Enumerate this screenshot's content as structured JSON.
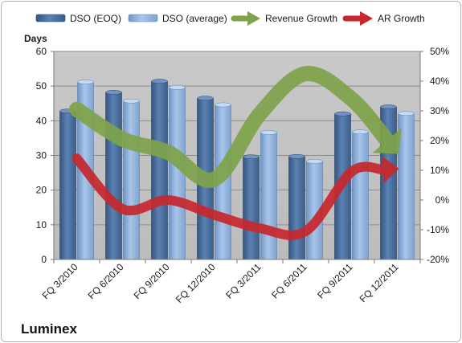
{
  "brand": "Luminex",
  "chart_data": {
    "type": "bar",
    "categories": [
      "FQ 3/2010",
      "FQ 6/2010",
      "FQ 9/2010",
      "FQ 12/2010",
      "FQ 3/2011",
      "FQ 6/2011",
      "FQ 9/2011",
      "FQ 12/2011"
    ],
    "series": [
      {
        "name": "DSO (EOQ)",
        "type": "bar",
        "axis": "left",
        "color": "#4a6f9c",
        "values": [
          42.8,
          48.2,
          51.4,
          46.5,
          29.6,
          29.7,
          42.0,
          44.0
        ]
      },
      {
        "name": "DSO (average)",
        "type": "bar",
        "axis": "left",
        "color": "#8fb1dc",
        "values": [
          51.2,
          45.7,
          49.6,
          44.6,
          36.6,
          28.3,
          36.8,
          42.1
        ]
      },
      {
        "name": "Revenue Growth",
        "type": "line-arrow",
        "axis": "right",
        "color": "#7fa24a",
        "values": [
          30.5,
          20.5,
          16.0,
          7.0,
          29.0,
          42.5,
          34.0,
          16.0
        ]
      },
      {
        "name": "AR Growth",
        "type": "line-arrow",
        "axis": "right",
        "color": "#c6282d",
        "values": [
          14.0,
          -3.0,
          0.0,
          -5.0,
          -9.5,
          -10.5,
          9.5,
          10.5
        ]
      }
    ],
    "ylabel": "Days",
    "ylim": [
      0,
      60
    ],
    "yticks": [
      "0",
      "10",
      "20",
      "30",
      "40",
      "50",
      "60"
    ],
    "y2lim": [
      -20,
      50
    ],
    "y2ticks": [
      "-20%",
      "-10%",
      "0%",
      "10%",
      "20%",
      "30%",
      "40%",
      "50%"
    ],
    "grid": true,
    "legend_position": "top",
    "plot_background": "#c0c0c0"
  }
}
